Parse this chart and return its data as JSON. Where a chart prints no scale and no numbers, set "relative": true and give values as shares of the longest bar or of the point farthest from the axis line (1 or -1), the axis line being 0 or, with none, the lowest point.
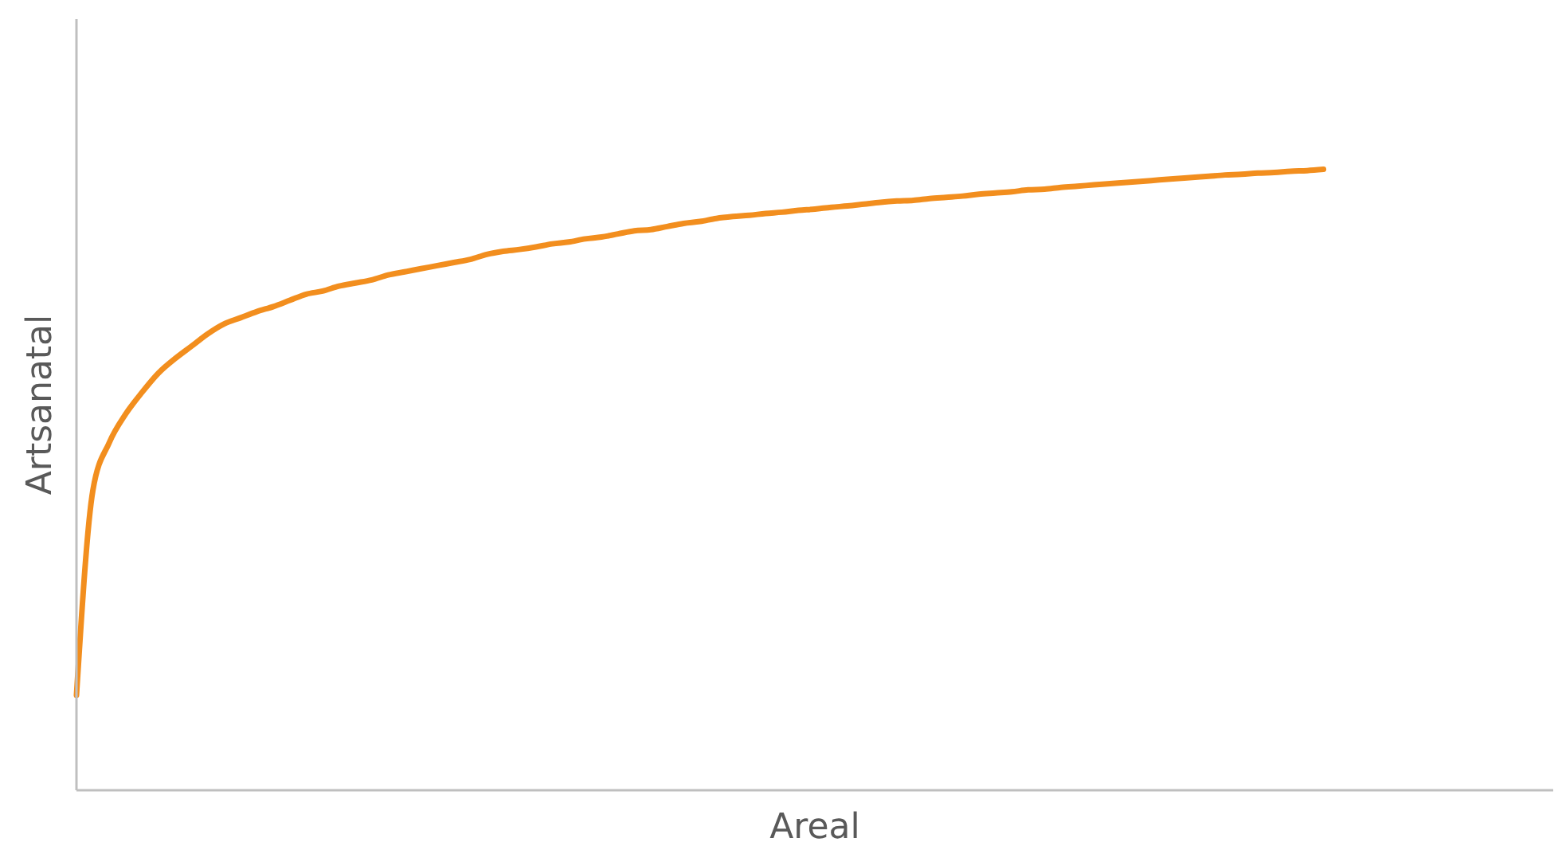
{
  "chart_data": {
    "type": "line",
    "xlabel": "Areal",
    "ylabel": "Artsanatal",
    "relative": true,
    "grid": false,
    "legend": false,
    "marker": "none",
    "line_style": "solid",
    "categories": [
      null,
      null,
      null,
      null,
      null,
      null,
      null,
      null,
      null,
      null,
      null,
      null,
      null,
      null,
      null,
      null,
      null,
      null,
      null,
      null,
      null,
      null,
      null,
      null,
      null,
      null,
      null,
      null,
      null,
      null,
      null,
      null,
      null,
      null,
      null,
      null,
      null,
      null,
      null,
      null,
      null,
      null,
      null,
      null,
      null,
      null,
      null,
      null,
      null,
      null,
      null,
      null,
      null,
      null,
      null,
      null,
      null,
      null,
      null,
      null,
      null,
      null,
      null,
      null,
      null,
      null,
      null,
      null,
      null,
      null,
      null,
      null,
      null,
      null,
      null,
      null,
      null,
      null,
      null,
      null,
      null,
      null,
      null,
      null,
      null,
      null,
      null,
      null,
      null,
      null,
      null
    ],
    "series": [
      {
        "color": "#f28e1e",
        "values": [
          0.153,
          0.483,
          0.56,
          0.606,
          0.641,
          0.672,
          0.695,
          0.715,
          0.735,
          0.751,
          0.761,
          0.771,
          0.779,
          0.789,
          0.799,
          0.804,
          0.812,
          0.817,
          0.822,
          0.83,
          0.835,
          0.84,
          0.845,
          0.85,
          0.855,
          0.863,
          0.868,
          0.871,
          0.875,
          0.88,
          0.883,
          0.888,
          0.891,
          0.896,
          0.901,
          0.903,
          0.908,
          0.913,
          0.916,
          0.921,
          0.924,
          0.926,
          0.929,
          0.931,
          0.934,
          0.936,
          0.939,
          0.941,
          0.944,
          0.947,
          0.949,
          0.95,
          0.953,
          0.955,
          0.957,
          0.96,
          0.962,
          0.964,
          0.967,
          0.968,
          0.971,
          0.973,
          0.975,
          0.977,
          0.979,
          0.981,
          0.983,
          0.985,
          0.987,
          0.989,
          0.991,
          0.992,
          0.994,
          0.995,
          0.997,
          0.998,
          1,
          null,
          null,
          null,
          null,
          null,
          null,
          null,
          null,
          null,
          null,
          null,
          null,
          null,
          null
        ]
      }
    ]
  }
}
